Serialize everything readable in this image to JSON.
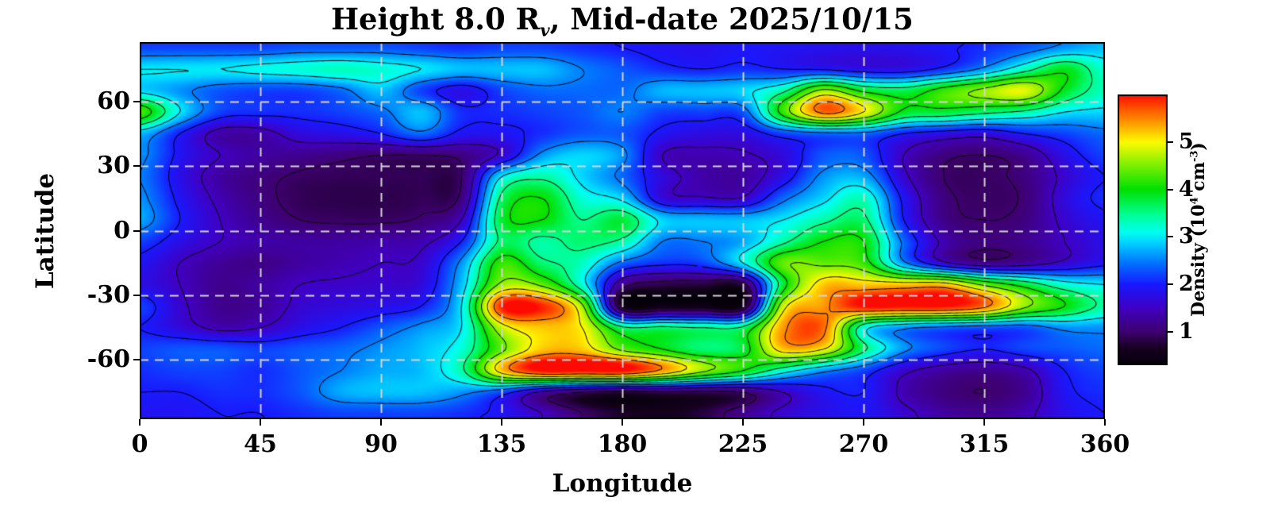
{
  "title": {
    "before_sub": "Height 8.0 R",
    "subscript": "v",
    "after_sub": ", Mid-date 2025/10/15"
  },
  "axes": {
    "x": {
      "label": "Longitude",
      "ticks": [
        0,
        45,
        90,
        135,
        180,
        225,
        270,
        315,
        360
      ],
      "min": 0,
      "max": 360
    },
    "y": {
      "label": "Latitude",
      "ticks": [
        60,
        30,
        0,
        -30,
        -60
      ],
      "min": -87.5,
      "max": 87.5
    }
  },
  "colorbar": {
    "label": {
      "prefix": "Density (10",
      "sup1": "4",
      "mid": " cm",
      "sup2": "-3",
      "suffix": ")"
    },
    "ticks": [
      5,
      4,
      3,
      2,
      1
    ],
    "value_min": 0.3,
    "value_max": 6.0
  },
  "chart_data": {
    "type": "heatmap",
    "title": "Height 8.0 Rv, Mid-date 2025/10/15",
    "xlabel": "Longitude",
    "ylabel": "Latitude",
    "units": "10^4 cm^-3",
    "x_range": [
      0,
      360
    ],
    "y_range": [
      -87.5,
      87.5
    ],
    "grid_on": true,
    "gridlines": {
      "lon": [
        45,
        90,
        135,
        180,
        225,
        270,
        315
      ],
      "lat": [
        60,
        30,
        0,
        -30,
        -60
      ]
    },
    "legend_position": "right-colorbar",
    "contour_levels": [
      1,
      1.5,
      2,
      2.5,
      3,
      3.5,
      4,
      4.5,
      5,
      5.5
    ],
    "colormap_stops": [
      [
        0.3,
        "#05000a"
      ],
      [
        0.65,
        "#160020"
      ],
      [
        1.0,
        "#3e006e"
      ],
      [
        1.5,
        "#4000c3"
      ],
      [
        2.0,
        "#1919ff"
      ],
      [
        2.5,
        "#007dff"
      ],
      [
        2.9,
        "#00d7ff"
      ],
      [
        3.1,
        "#00fff0"
      ],
      [
        3.5,
        "#00ff8c"
      ],
      [
        4.0,
        "#00e100"
      ],
      [
        4.5,
        "#7af000"
      ],
      [
        5.0,
        "#fffa00"
      ],
      [
        5.5,
        "#ff8200"
      ],
      [
        6.0,
        "#ff0a00"
      ]
    ],
    "grid_lon": [
      0,
      15,
      30,
      45,
      60,
      75,
      90,
      105,
      120,
      135,
      150,
      165,
      180,
      195,
      210,
      225,
      240,
      255,
      270,
      285,
      300,
      315,
      330,
      345,
      360
    ],
    "grid_lat": [
      85,
      75,
      65,
      55,
      45,
      35,
      25,
      15,
      5,
      -5,
      -15,
      -25,
      -35,
      -45,
      -55,
      -65,
      -75,
      -85
    ],
    "density_1e4_cm3": [
      [
        2.2,
        2.2,
        2.2,
        2.2,
        2.3,
        2.3,
        2.3,
        2.2,
        2.1,
        2.2,
        2.2,
        2.1,
        2.0,
        1.9,
        1.85,
        1.95,
        1.9,
        1.85,
        1.8,
        1.85,
        1.95,
        2.1,
        2.3,
        2.6,
        2.8
      ],
      [
        3.0,
        3.0,
        3.0,
        3.1,
        3.2,
        3.3,
        3.2,
        3.0,
        2.8,
        2.8,
        2.8,
        2.5,
        2.3,
        2.1,
        2.0,
        2.1,
        2.0,
        1.95,
        1.8,
        1.8,
        2.1,
        2.6,
        3.3,
        3.9,
        3.2
      ],
      [
        2.9,
        2.6,
        2.3,
        2.2,
        2.2,
        2.4,
        2.8,
        2.2,
        1.8,
        2.2,
        2.4,
        2.4,
        2.4,
        2.75,
        2.8,
        2.9,
        3.4,
        4.6,
        3.9,
        3.7,
        4.2,
        4.6,
        4.9,
        3.9,
        3.3
      ],
      [
        4.3,
        3.0,
        2.2,
        2.1,
        2.1,
        2.2,
        2.4,
        2.8,
        2.1,
        2.1,
        2.2,
        2.3,
        2.5,
        2.2,
        2.2,
        2.3,
        4.2,
        5.6,
        5.0,
        3.9,
        3.8,
        3.6,
        3.4,
        3.0,
        2.9
      ],
      [
        2.8,
        2.0,
        1.35,
        1.35,
        1.7,
        1.8,
        2.0,
        2.4,
        1.9,
        1.9,
        2.1,
        2.3,
        2.3,
        1.9,
        1.75,
        1.75,
        2.2,
        2.4,
        2.4,
        2.0,
        1.8,
        1.7,
        2.0,
        2.2,
        2.4
      ],
      [
        2.6,
        1.9,
        1.5,
        1.3,
        1.2,
        1.1,
        1.0,
        1.0,
        1.1,
        1.6,
        2.6,
        2.9,
        2.6,
        1.5,
        1.4,
        1.45,
        1.7,
        2.3,
        2.3,
        1.5,
        1.1,
        1.0,
        1.2,
        1.8,
        2.2
      ],
      [
        2.5,
        1.8,
        1.3,
        1.1,
        0.95,
        0.9,
        0.9,
        0.9,
        1.0,
        3.0,
        3.4,
        2.9,
        2.4,
        1.7,
        1.35,
        1.3,
        1.8,
        2.6,
        2.7,
        1.6,
        1.0,
        0.95,
        1.1,
        1.6,
        2.0
      ],
      [
        2.6,
        1.9,
        1.4,
        1.1,
        0.9,
        0.85,
        0.85,
        0.9,
        1.1,
        3.6,
        4.0,
        3.2,
        2.9,
        1.7,
        1.55,
        1.55,
        2.4,
        2.9,
        3.3,
        1.9,
        1.1,
        0.95,
        1.05,
        1.7,
        2.1
      ],
      [
        2.7,
        2.0,
        1.5,
        1.2,
        1.0,
        0.95,
        0.95,
        1.05,
        1.5,
        3.8,
        4.0,
        3.5,
        3.8,
        2.9,
        2.8,
        2.8,
        3.0,
        3.4,
        3.6,
        2.0,
        1.15,
        1.0,
        1.1,
        1.6,
        1.9
      ],
      [
        2.2,
        1.8,
        1.5,
        1.35,
        1.3,
        1.3,
        1.35,
        1.4,
        2.0,
        3.6,
        3.4,
        3.6,
        3.4,
        2.5,
        2.5,
        2.7,
        3.4,
        4.0,
        4.0,
        2.4,
        1.4,
        1.1,
        1.2,
        1.5,
        1.8
      ],
      [
        1.9,
        1.5,
        1.25,
        1.15,
        1.3,
        1.4,
        1.5,
        1.6,
        2.6,
        4.2,
        3.6,
        3.3,
        2.4,
        2.1,
        2.2,
        3.0,
        4.4,
        4.4,
        4.2,
        2.6,
        1.6,
        1.2,
        1.3,
        1.6,
        1.9
      ],
      [
        1.8,
        1.5,
        1.2,
        1.3,
        1.5,
        1.55,
        1.6,
        1.7,
        2.8,
        4.6,
        4.4,
        3.2,
        1.2,
        0.85,
        0.8,
        0.85,
        3.8,
        5.2,
        5.2,
        5.2,
        5.2,
        4.4,
        3.8,
        3.2,
        3.0
      ],
      [
        2.2,
        1.6,
        1.2,
        1.25,
        1.6,
        1.7,
        1.8,
        2.0,
        3.0,
        5.9,
        5.9,
        4.6,
        0.6,
        0.5,
        0.5,
        0.6,
        4.8,
        5.4,
        6.0,
        6.0,
        6.0,
        5.6,
        4.6,
        4.0,
        3.4
      ],
      [
        2.0,
        1.7,
        1.4,
        1.5,
        1.8,
        2.0,
        2.3,
        2.6,
        3.0,
        4.8,
        5.2,
        5.0,
        3.6,
        3.6,
        3.5,
        3.6,
        5.4,
        5.6,
        3.2,
        2.6,
        2.4,
        2.3,
        2.3,
        2.6,
        2.6
      ],
      [
        2.2,
        2.3,
        2.3,
        2.2,
        2.3,
        2.4,
        2.6,
        2.8,
        3.2,
        4.4,
        5.2,
        5.2,
        4.4,
        4.0,
        3.6,
        3.8,
        5.2,
        5.0,
        3.6,
        2.6,
        2.2,
        2.0,
        2.2,
        2.3,
        2.4
      ],
      [
        2.1,
        2.2,
        2.2,
        2.1,
        2.3,
        2.5,
        2.7,
        2.8,
        3.4,
        5.2,
        6.0,
        6.0,
        6.0,
        5.4,
        4.6,
        4.0,
        3.2,
        2.6,
        2.2,
        1.6,
        1.3,
        1.2,
        1.4,
        2.0,
        2.2
      ],
      [
        2.0,
        2.0,
        2.1,
        2.1,
        2.3,
        2.7,
        2.8,
        2.8,
        2.6,
        2.2,
        1.4,
        1.0,
        0.8,
        0.9,
        0.9,
        1.0,
        1.5,
        1.9,
        2.0,
        1.4,
        1.1,
        1.0,
        1.2,
        1.9,
        2.1
      ],
      [
        1.9,
        1.9,
        2.0,
        2.0,
        2.1,
        2.2,
        2.2,
        2.2,
        2.1,
        1.9,
        1.5,
        1.0,
        0.7,
        0.6,
        0.8,
        1.2,
        1.6,
        1.8,
        1.9,
        1.6,
        1.3,
        1.2,
        1.4,
        1.8,
        2.0
      ]
    ]
  }
}
